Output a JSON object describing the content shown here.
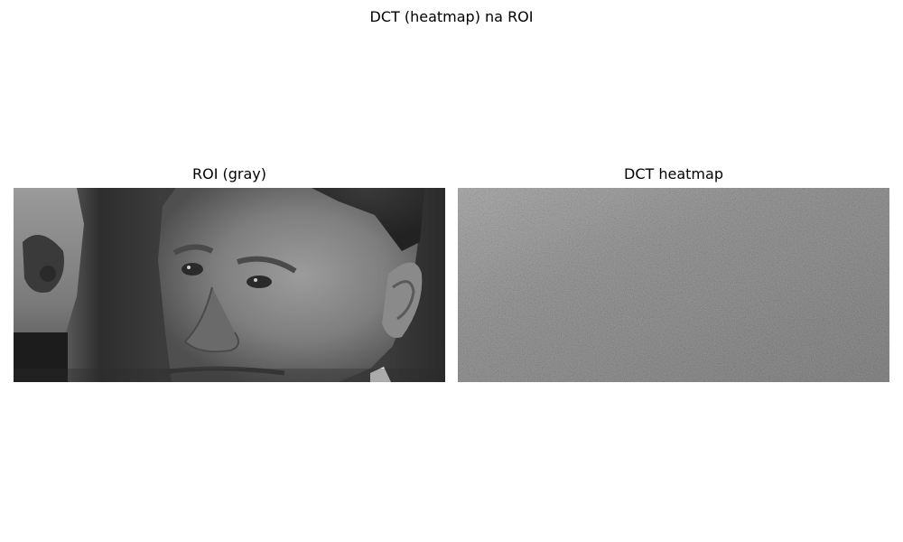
{
  "figure": {
    "title": "DCT (heatmap) na ROI"
  },
  "panels": [
    {
      "title": "ROI (gray)",
      "content": "grayscale cropped face photo"
    },
    {
      "title": "DCT heatmap",
      "content": "grayscale noise-like DCT coefficient heatmap"
    }
  ]
}
